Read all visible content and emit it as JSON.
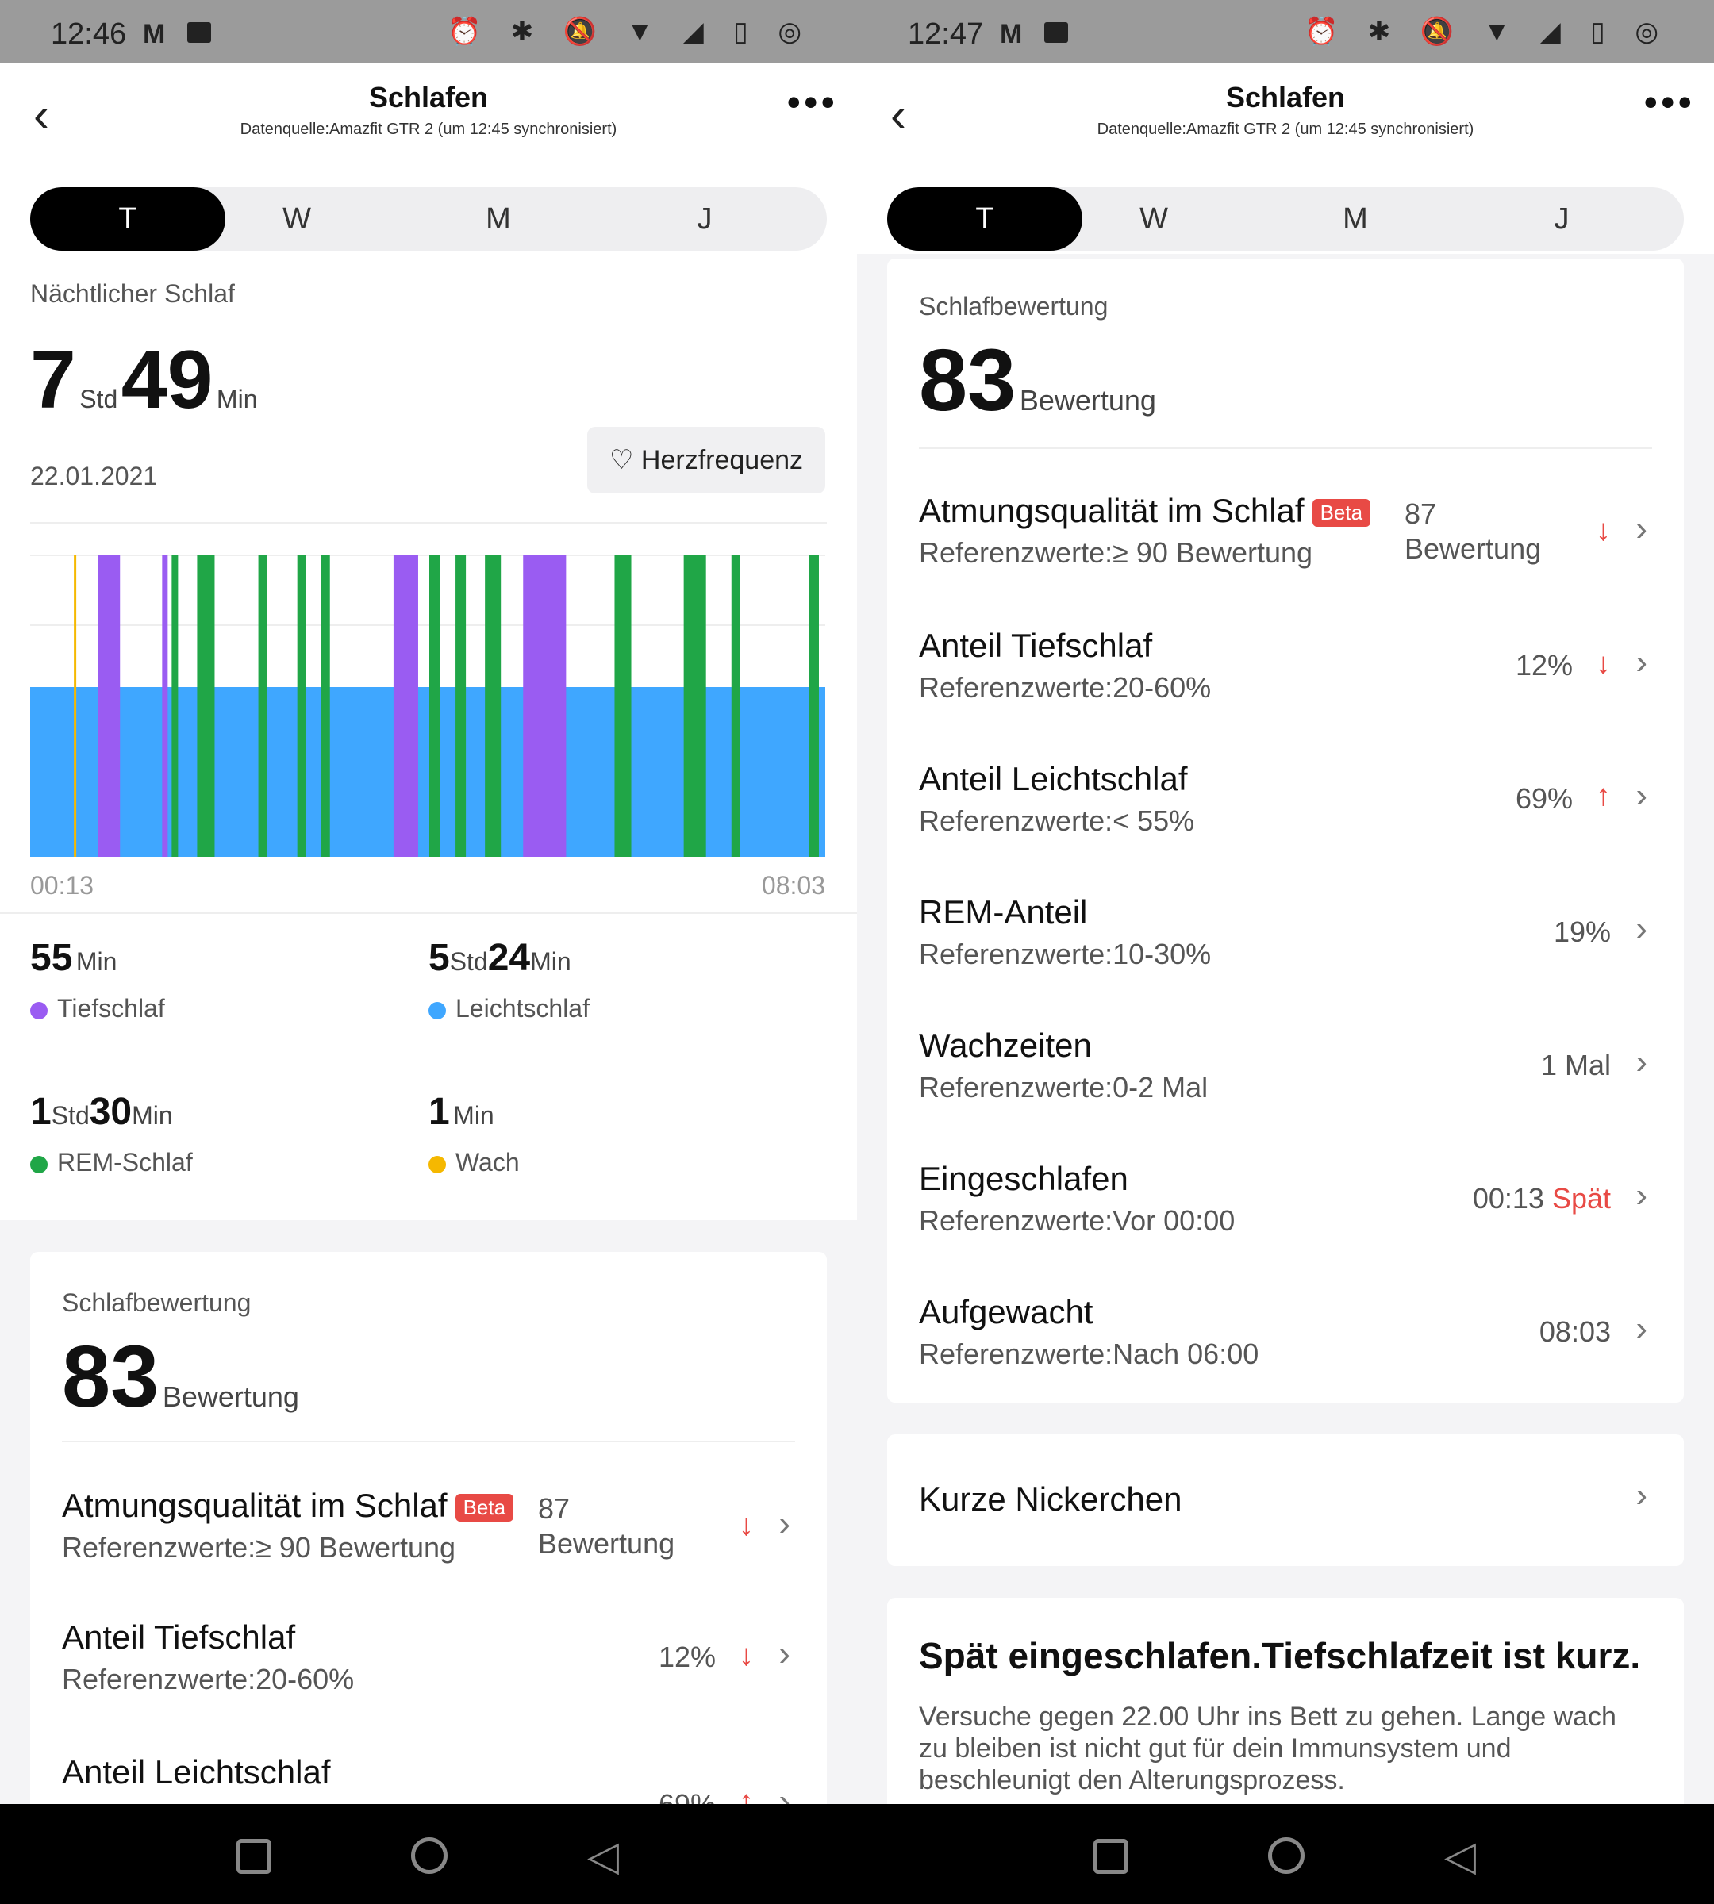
{
  "status_left": {
    "time": "12:46",
    "mail_icon": "M"
  },
  "status_right": {
    "time": "12:47",
    "mail_icon": "M"
  },
  "status_icons": "⏰ ✱ 🔕 ▼ ◢ ▯ ◎",
  "header": {
    "title": "Schlafen",
    "subtitle": "Datenquelle:Amazfit GTR 2 (um 12:45 synchronisiert)"
  },
  "tabs": [
    "T",
    "W",
    "M",
    "J"
  ],
  "sleep": {
    "label": "Nächtlicher Schlaf",
    "hours": "7",
    "hours_unit": "Std",
    "minutes": "49",
    "minutes_unit": "Min",
    "date": "22.01.2021",
    "heart_button": "Herzfrequenz",
    "start_time": "00:13",
    "end_time": "08:03"
  },
  "stats": [
    {
      "a": "55",
      "a_unit": "Min",
      "b": "",
      "b_unit": "",
      "label": "Tiefschlaf",
      "color": "#9a5cf2"
    },
    {
      "a": "5",
      "a_unit": "Std",
      "b": "24",
      "b_unit": "Min",
      "label": "Leichtschlaf",
      "color": "#3fa7ff"
    },
    {
      "a": "1",
      "a_unit": "Std",
      "b": "30",
      "b_unit": "Min",
      "label": "REM-Schlaf",
      "color": "#20a647"
    },
    {
      "a": "1",
      "a_unit": "Min",
      "b": "",
      "b_unit": "",
      "label": "Wach",
      "color": "#f5b800"
    }
  ],
  "score": {
    "label": "Schlafbewertung",
    "value": "83",
    "unit": "Bewertung"
  },
  "metrics": [
    {
      "title": "Atmungsqualität im Schlaf",
      "beta": "Beta",
      "ref": "Referenzwerte:≥ 90 Bewertung",
      "value": "87",
      "value2": "Bewertung",
      "trend": "↓"
    },
    {
      "title": "Anteil Tiefschlaf",
      "ref": "Referenzwerte:20-60%",
      "value": "12%",
      "trend": "↓"
    },
    {
      "title": "Anteil Leichtschlaf",
      "ref": "Referenzwerte:< 55%",
      "value": "69%",
      "trend": "↑"
    },
    {
      "title": "REM-Anteil",
      "ref": "Referenzwerte:10-30%",
      "value": "19%",
      "trend": ""
    },
    {
      "title": "Wachzeiten",
      "ref": "Referenzwerte:0-2 Mal",
      "value": "1 Mal",
      "trend": ""
    },
    {
      "title": "Eingeschlafen",
      "ref": "Referenzwerte:Vor 00:00",
      "value": "00:13",
      "value_note": "Spät",
      "trend": ""
    },
    {
      "title": "Aufgewacht",
      "ref": "Referenzwerte:Nach 06:00",
      "value": "08:03",
      "trend": ""
    }
  ],
  "naps": {
    "label": "Kurze Nickerchen"
  },
  "advice": {
    "title": "Spät eingeschlafen.Tiefschlafzeit ist kurz.",
    "body": "Versuche gegen 22.00 Uhr ins Bett zu gehen. Lange wach zu bleiben ist nicht gut für dein Immunsystem und beschleunigt den Alterungsprozess."
  },
  "chart_data": {
    "type": "hypnogram",
    "x_start": "00:13",
    "x_end": "08:03",
    "stages": {
      "deep": "#9a5cf2",
      "light": "#3fa7ff",
      "rem": "#20a647",
      "awake": "#f5b800"
    },
    "segments": [
      {
        "stage": "awake",
        "from": 0.055,
        "to": 0.058
      },
      {
        "stage": "deep",
        "from": 0.085,
        "to": 0.113
      },
      {
        "stage": "deep",
        "from": 0.166,
        "to": 0.173
      },
      {
        "stage": "rem",
        "from": 0.178,
        "to": 0.186
      },
      {
        "stage": "rem",
        "from": 0.21,
        "to": 0.232
      },
      {
        "stage": "rem",
        "from": 0.287,
        "to": 0.298
      },
      {
        "stage": "rem",
        "from": 0.336,
        "to": 0.347
      },
      {
        "stage": "rem",
        "from": 0.366,
        "to": 0.377
      },
      {
        "stage": "deep",
        "from": 0.457,
        "to": 0.488
      },
      {
        "stage": "rem",
        "from": 0.502,
        "to": 0.515
      },
      {
        "stage": "rem",
        "from": 0.535,
        "to": 0.548
      },
      {
        "stage": "rem",
        "from": 0.572,
        "to": 0.592
      },
      {
        "stage": "deep",
        "from": 0.62,
        "to": 0.674
      },
      {
        "stage": "rem",
        "from": 0.735,
        "to": 0.756
      },
      {
        "stage": "rem",
        "from": 0.822,
        "to": 0.85
      },
      {
        "stage": "rem",
        "from": 0.882,
        "to": 0.893
      },
      {
        "stage": "rem",
        "from": 0.98,
        "to": 0.992
      }
    ]
  }
}
